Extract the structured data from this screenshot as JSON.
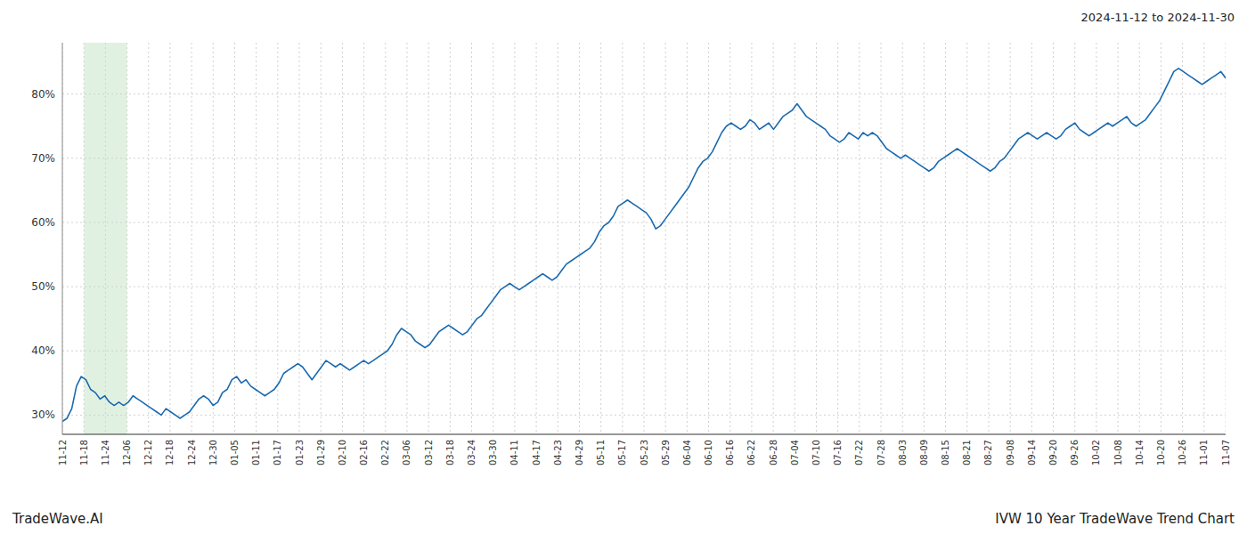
{
  "chart_data": {
    "type": "line",
    "title": "IVW 10 Year TradeWave Trend Chart",
    "subtitle": "2024-11-12 to 2024-11-30",
    "annotations": [
      "TradeWave.AI"
    ],
    "color": "#1a6ab0",
    "grid": true,
    "highlight": {
      "start": 4.5741,
      "end": 13.7222,
      "color": "#c8e6c9"
    },
    "xlim": [
      0,
      247
    ],
    "xticks": [
      {
        "value": 0,
        "label": "11-12"
      },
      {
        "value": 4.5741,
        "label": "11-18"
      },
      {
        "value": 9.1481,
        "label": "11-24"
      },
      {
        "value": 13.7222,
        "label": "12-06"
      },
      {
        "value": 18.2963,
        "label": "12-12"
      },
      {
        "value": 22.8704,
        "label": "12-18"
      },
      {
        "value": 27.4444,
        "label": "12-24"
      },
      {
        "value": 32.0185,
        "label": "12-30"
      },
      {
        "value": 36.5926,
        "label": "01-05"
      },
      {
        "value": 41.1667,
        "label": "01-11"
      },
      {
        "value": 45.7407,
        "label": "01-17"
      },
      {
        "value": 50.3148,
        "label": "01-23"
      },
      {
        "value": 54.8889,
        "label": "01-29"
      },
      {
        "value": 59.463,
        "label": "02-10"
      },
      {
        "value": 64.037,
        "label": "02-16"
      },
      {
        "value": 68.6111,
        "label": "02-22"
      },
      {
        "value": 73.1852,
        "label": "03-06"
      },
      {
        "value": 77.7593,
        "label": "03-12"
      },
      {
        "value": 82.3333,
        "label": "03-18"
      },
      {
        "value": 86.9074,
        "label": "03-24"
      },
      {
        "value": 91.4815,
        "label": "03-30"
      },
      {
        "value": 96.0556,
        "label": "04-11"
      },
      {
        "value": 100.6296,
        "label": "04-17"
      },
      {
        "value": 105.2037,
        "label": "04-23"
      },
      {
        "value": 109.7778,
        "label": "04-29"
      },
      {
        "value": 114.3519,
        "label": "05-11"
      },
      {
        "value": 118.9259,
        "label": "05-17"
      },
      {
        "value": 123.5,
        "label": "05-23"
      },
      {
        "value": 128.0741,
        "label": "05-29"
      },
      {
        "value": 132.6481,
        "label": "06-04"
      },
      {
        "value": 137.2222,
        "label": "06-10"
      },
      {
        "value": 141.7963,
        "label": "06-16"
      },
      {
        "value": 146.3704,
        "label": "06-22"
      },
      {
        "value": 150.9444,
        "label": "06-28"
      },
      {
        "value": 155.5185,
        "label": "07-04"
      },
      {
        "value": 160.0926,
        "label": "07-10"
      },
      {
        "value": 164.6667,
        "label": "07-16"
      },
      {
        "value": 169.2407,
        "label": "07-22"
      },
      {
        "value": 173.8148,
        "label": "07-28"
      },
      {
        "value": 178.3889,
        "label": "08-03"
      },
      {
        "value": 182.963,
        "label": "08-09"
      },
      {
        "value": 187.537,
        "label": "08-15"
      },
      {
        "value": 192.1111,
        "label": "08-21"
      },
      {
        "value": 196.6852,
        "label": "08-27"
      },
      {
        "value": 201.2593,
        "label": "09-08"
      },
      {
        "value": 205.8333,
        "label": "09-14"
      },
      {
        "value": 210.4074,
        "label": "09-20"
      },
      {
        "value": 214.9815,
        "label": "09-26"
      },
      {
        "value": 219.5556,
        "label": "10-02"
      },
      {
        "value": 224.1296,
        "label": "10-08"
      },
      {
        "value": 228.7037,
        "label": "10-14"
      },
      {
        "value": 233.2778,
        "label": "10-20"
      },
      {
        "value": 237.8519,
        "label": "10-26"
      },
      {
        "value": 242.4259,
        "label": "11-01"
      },
      {
        "value": 247,
        "label": "11-07"
      }
    ],
    "ylim": [
      27,
      88
    ],
    "yticks": [
      {
        "value": 30,
        "label": "30%"
      },
      {
        "value": 40,
        "label": "40%"
      },
      {
        "value": 50,
        "label": "50%"
      },
      {
        "value": 60,
        "label": "60%"
      },
      {
        "value": 70,
        "label": "70%"
      },
      {
        "value": 80,
        "label": "80%"
      }
    ],
    "values": [
      29.0,
      29.5,
      31.0,
      34.5,
      36.0,
      35.5,
      34.0,
      33.5,
      32.5,
      33.0,
      32.0,
      31.5,
      32.0,
      31.5,
      32.0,
      33.0,
      32.5,
      32.0,
      31.5,
      31.0,
      30.5,
      30.0,
      31.0,
      30.5,
      30.0,
      29.5,
      30.0,
      30.5,
      31.5,
      32.5,
      33.0,
      32.5,
      31.5,
      32.0,
      33.5,
      34.0,
      35.5,
      36.0,
      35.0,
      35.5,
      34.5,
      34.0,
      33.5,
      33.0,
      33.5,
      34.0,
      35.0,
      36.5,
      37.0,
      37.5,
      38.0,
      37.5,
      36.5,
      35.5,
      36.5,
      37.5,
      38.5,
      38.0,
      37.5,
      38.0,
      37.5,
      37.0,
      37.5,
      38.0,
      38.5,
      38.0,
      38.5,
      39.0,
      39.5,
      40.0,
      41.0,
      42.5,
      43.5,
      43.0,
      42.5,
      41.5,
      41.0,
      40.5,
      41.0,
      42.0,
      43.0,
      43.5,
      44.0,
      43.5,
      43.0,
      42.5,
      43.0,
      44.0,
      45.0,
      45.5,
      46.5,
      47.5,
      48.5,
      49.5,
      50.0,
      50.5,
      50.0,
      49.5,
      50.0,
      50.5,
      51.0,
      51.5,
      52.0,
      51.5,
      51.0,
      51.5,
      52.5,
      53.5,
      54.0,
      54.5,
      55.0,
      55.5,
      56.0,
      57.0,
      58.5,
      59.5,
      60.0,
      61.0,
      62.5,
      63.0,
      63.5,
      63.0,
      62.5,
      62.0,
      61.5,
      60.5,
      59.0,
      59.5,
      60.5,
      61.5,
      62.5,
      63.5,
      64.5,
      65.5,
      67.0,
      68.5,
      69.5,
      70.0,
      71.0,
      72.5,
      74.0,
      75.0,
      75.5,
      75.0,
      74.5,
      75.0,
      76.0,
      75.5,
      74.5,
      75.0,
      75.5,
      74.5,
      75.5,
      76.5,
      77.0,
      77.5,
      78.5,
      77.5,
      76.5,
      76.0,
      75.5,
      75.0,
      74.5,
      73.5,
      73.0,
      72.5,
      73.0,
      74.0,
      73.5,
      73.0,
      74.0,
      73.5,
      74.0,
      73.5,
      72.5,
      71.5,
      71.0,
      70.5,
      70.0,
      70.5,
      70.0,
      69.5,
      69.0,
      68.5,
      68.0,
      68.5,
      69.5,
      70.0,
      70.5,
      71.0,
      71.5,
      71.0,
      70.5,
      70.0,
      69.5,
      69.0,
      68.5,
      68.0,
      68.5,
      69.5,
      70.0,
      71.0,
      72.0,
      73.0,
      73.5,
      74.0,
      73.5,
      73.0,
      73.5,
      74.0,
      73.5,
      73.0,
      73.5,
      74.5,
      75.0,
      75.5,
      74.5,
      74.0,
      73.5,
      74.0,
      74.5,
      75.0,
      75.5,
      75.0,
      75.5,
      76.0,
      76.5,
      75.5,
      75.0,
      75.5,
      76.0,
      77.0,
      78.0,
      79.0,
      80.5,
      82.0,
      83.5,
      84.0,
      83.5,
      83.0,
      82.5,
      82.0,
      81.5,
      82.0,
      82.5,
      83.0,
      83.5,
      82.5
    ]
  }
}
